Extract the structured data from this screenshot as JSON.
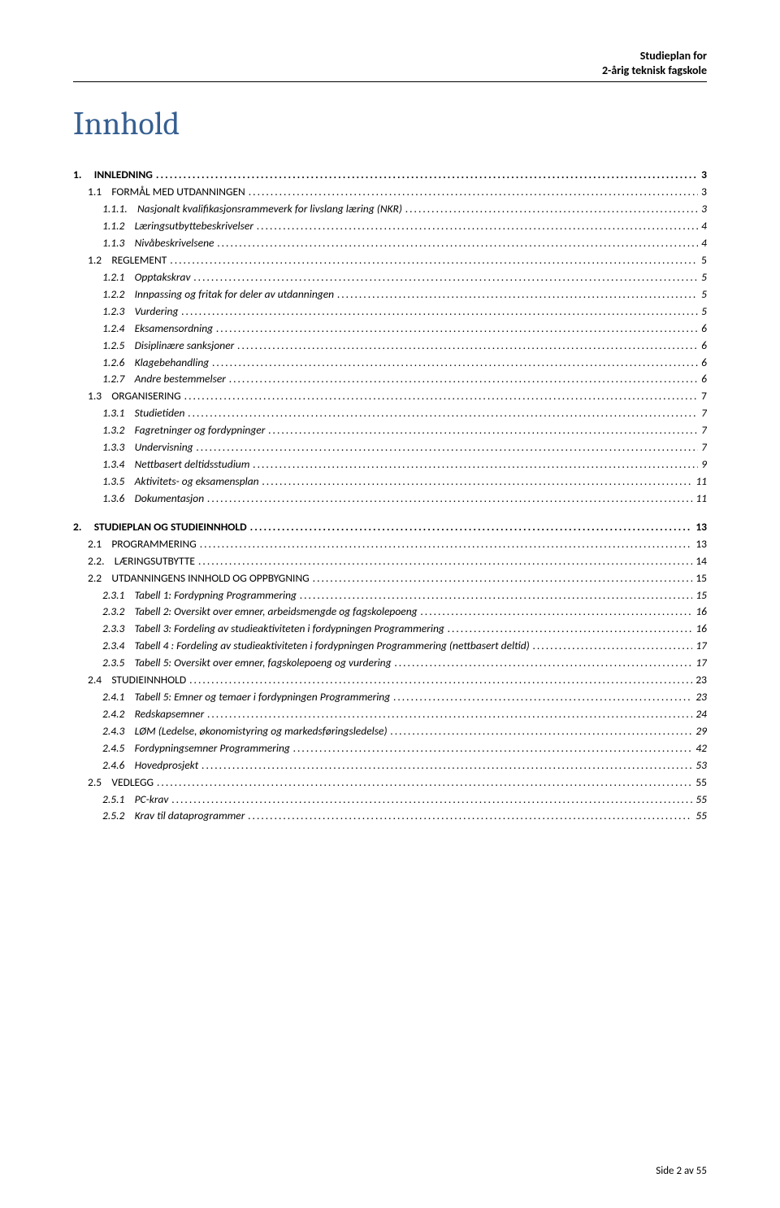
{
  "header": {
    "line1": "Studieplan for",
    "line2": "2-årig teknisk fagskole"
  },
  "title": "Innhold",
  "footer": "Side 2 av 55",
  "colors": {
    "title_color": "#365f91",
    "text_color": "#000000",
    "background": "#ffffff"
  },
  "toc": [
    {
      "level": 1,
      "num": "1.",
      "text": "INNLEDNING",
      "page": "3"
    },
    {
      "level": 2,
      "num": "1.1",
      "text": "FORMÅL MED UTDANNINGEN",
      "page": "3",
      "smallcaps": true
    },
    {
      "level": 3,
      "num": "1.1.1.",
      "text": "Nasjonalt kvalifikasjonsrammeverk for livslang læring (NKR)",
      "page": "3"
    },
    {
      "level": 3,
      "num": "1.1.2",
      "text": "Læringsutbyttebeskrivelser",
      "page": "4"
    },
    {
      "level": 3,
      "num": "1.1.3",
      "text": "Nivåbeskrivelsene",
      "page": "4"
    },
    {
      "level": 2,
      "num": "1.2",
      "text": "REGLEMENT",
      "page": "5",
      "smallcaps": true
    },
    {
      "level": 3,
      "num": "1.2.1",
      "text": "Opptakskrav",
      "page": "5"
    },
    {
      "level": 3,
      "num": "1.2.2",
      "text": "Innpassing og fritak for deler av utdanningen",
      "page": "5"
    },
    {
      "level": 3,
      "num": "1.2.3",
      "text": "Vurdering",
      "page": "5"
    },
    {
      "level": 3,
      "num": "1.2.4",
      "text": "Eksamensordning",
      "page": "6"
    },
    {
      "level": 3,
      "num": "1.2.5",
      "text": "Disiplinære sanksjoner",
      "page": "6"
    },
    {
      "level": 3,
      "num": "1.2.6",
      "text": "Klagebehandling",
      "page": "6"
    },
    {
      "level": 3,
      "num": "1.2.7",
      "text": "Andre bestemmelser",
      "page": "6"
    },
    {
      "level": 2,
      "num": "1.3",
      "text": "ORGANISERING",
      "page": "7",
      "smallcaps": true
    },
    {
      "level": 3,
      "num": "1.3.1",
      "text": "Studietiden",
      "page": "7"
    },
    {
      "level": 3,
      "num": "1.3.2",
      "text": "Fagretninger og fordypninger",
      "page": "7"
    },
    {
      "level": 3,
      "num": "1.3.3",
      "text": "Undervisning",
      "page": "7"
    },
    {
      "level": 3,
      "num": "1.3.4",
      "text": "Nettbasert deltidsstudium",
      "page": "9"
    },
    {
      "level": 3,
      "num": "1.3.5",
      "text": "Aktivitets- og eksamensplan",
      "page": "11"
    },
    {
      "level": 3,
      "num": "1.3.6",
      "text": "Dokumentasjon",
      "page": "11"
    },
    {
      "level": 1,
      "num": "2.",
      "text": "STUDIEPLAN OG STUDIEINNHOLD",
      "page": "13",
      "gap_before": true
    },
    {
      "level": 2,
      "num": "2.1",
      "text": "PROGRAMMERING",
      "page": "13",
      "smallcaps": true
    },
    {
      "level": 2,
      "num": "2.2.",
      "text": "LÆRINGSUTBYTTE",
      "page": "14",
      "smallcaps": true
    },
    {
      "level": 2,
      "num": "2.2",
      "text": "UTDANNINGENS INNHOLD OG OPPBYGNING",
      "page": "15",
      "smallcaps": true
    },
    {
      "level": 3,
      "num": "2.3.1",
      "text": "Tabell 1: Fordypning Programmering",
      "page": "15"
    },
    {
      "level": 3,
      "num": "2.3.2",
      "text": "Tabell 2: Oversikt over emner, arbeidsmengde og fagskolepoeng",
      "page": "16"
    },
    {
      "level": 3,
      "num": "2.3.3",
      "text": "Tabell 3: Fordeling av studieaktiviteten i fordypningen Programmering",
      "page": "16"
    },
    {
      "level": 3,
      "num": "2.3.4",
      "text": "Tabell 4 : Fordeling av studieaktiviteten i fordypningen Programmering (nettbasert deltid)",
      "page": "17"
    },
    {
      "level": 3,
      "num": "2.3.5",
      "text": "Tabell 5: Oversikt over emner, fagskolepoeng og vurdering",
      "page": "17"
    },
    {
      "level": 2,
      "num": "2.4",
      "text": "STUDIEINNHOLD",
      "page": "23",
      "smallcaps": true
    },
    {
      "level": 3,
      "num": "2.4.1",
      "text": "Tabell 5: Emner og temaer i fordypningen Programmering",
      "page": "23"
    },
    {
      "level": 3,
      "num": "2.4.2",
      "text": "Redskapsemner",
      "page": "24"
    },
    {
      "level": 3,
      "num": "2.4.3",
      "text": "LØM (Ledelse, økonomistyring og markedsføringsledelse)",
      "page": "29"
    },
    {
      "level": 3,
      "num": "2.4.5",
      "text": "Fordypningsemner Programmering",
      "page": "42"
    },
    {
      "level": 3,
      "num": "2.4.6",
      "text": "Hovedprosjekt",
      "page": "53"
    },
    {
      "level": 2,
      "num": "2.5",
      "text": "VEDLEGG",
      "page": "55",
      "smallcaps": true
    },
    {
      "level": 3,
      "num": "2.5.1",
      "text": "PC-krav",
      "page": "55"
    },
    {
      "level": 3,
      "num": "2.5.2",
      "text": "Krav til dataprogrammer",
      "page": "55"
    }
  ]
}
